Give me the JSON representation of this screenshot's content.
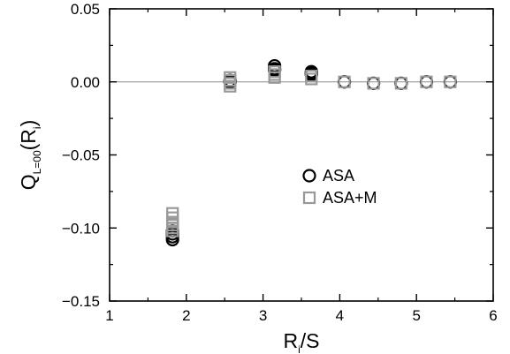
{
  "chart_data": {
    "type": "scatter",
    "xlabel": {
      "main": "R",
      "sub": "i",
      "tail": "/S"
    },
    "ylabel": {
      "main": "Q",
      "sub": "L=00",
      "tail_open": "(R",
      "tail_sub": "i",
      "tail_close": ")"
    },
    "xlim": [
      1,
      6
    ],
    "ylim": [
      -0.15,
      0.05
    ],
    "xticks": [
      1,
      2,
      3,
      4,
      5,
      6
    ],
    "xtick_labels": [
      "1",
      "2",
      "3",
      "4",
      "5",
      "6"
    ],
    "yticks": [
      -0.15,
      -0.1,
      -0.05,
      0.0,
      0.05
    ],
    "ytick_labels": [
      "−0.15",
      "−0.10",
      "−0.05",
      "0.00",
      "0.05"
    ],
    "zero_line": true,
    "grid": false,
    "legend_position": "center-right",
    "series": [
      {
        "name": "ASA",
        "marker": "circle",
        "color": "#000000",
        "points": [
          {
            "x": 1.82,
            "y": -0.102
          },
          {
            "x": 1.82,
            "y": -0.104
          },
          {
            "x": 1.82,
            "y": -0.106
          },
          {
            "x": 1.82,
            "y": -0.108
          },
          {
            "x": 2.57,
            "y": 0.001
          },
          {
            "x": 2.57,
            "y": 0.0
          },
          {
            "x": 3.15,
            "y": 0.011
          },
          {
            "x": 3.15,
            "y": 0.009
          },
          {
            "x": 3.15,
            "y": 0.008
          },
          {
            "x": 3.63,
            "y": 0.007
          },
          {
            "x": 3.63,
            "y": 0.006
          },
          {
            "x": 3.63,
            "y": 0.005
          },
          {
            "x": 4.06,
            "y": 0.0
          },
          {
            "x": 4.44,
            "y": -0.001
          },
          {
            "x": 4.8,
            "y": -0.001
          },
          {
            "x": 5.13,
            "y": 0.0
          },
          {
            "x": 5.44,
            "y": 0.0
          }
        ]
      },
      {
        "name": "ASA+M",
        "marker": "square",
        "color": "#999999",
        "points": [
          {
            "x": 1.82,
            "y": -0.09
          },
          {
            "x": 1.82,
            "y": -0.093
          },
          {
            "x": 1.82,
            "y": -0.096
          },
          {
            "x": 1.82,
            "y": -0.098
          },
          {
            "x": 1.82,
            "y": -0.1
          },
          {
            "x": 1.82,
            "y": -0.102
          },
          {
            "x": 2.57,
            "y": 0.003
          },
          {
            "x": 2.57,
            "y": 0.001
          },
          {
            "x": 2.57,
            "y": -0.001
          },
          {
            "x": 2.57,
            "y": -0.003
          },
          {
            "x": 3.15,
            "y": 0.007
          },
          {
            "x": 3.15,
            "y": 0.005
          },
          {
            "x": 3.15,
            "y": 0.003
          },
          {
            "x": 3.63,
            "y": 0.004
          },
          {
            "x": 3.63,
            "y": 0.002
          },
          {
            "x": 4.06,
            "y": 0.0
          },
          {
            "x": 4.44,
            "y": -0.001
          },
          {
            "x": 4.8,
            "y": -0.001
          },
          {
            "x": 5.13,
            "y": 0.0
          },
          {
            "x": 5.44,
            "y": 0.0
          }
        ]
      }
    ]
  }
}
